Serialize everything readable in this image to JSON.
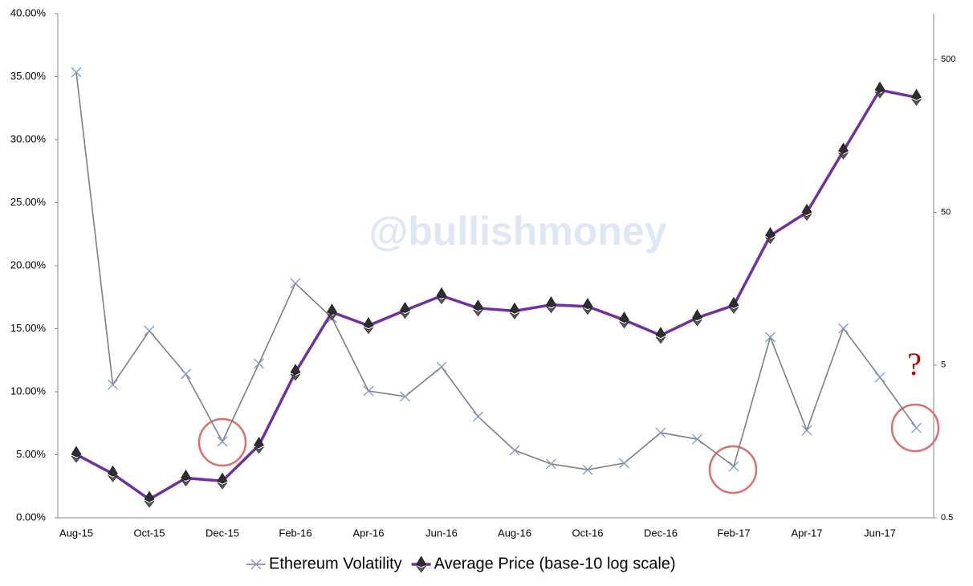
{
  "chart_data": {
    "type": "line",
    "watermark": "@bullishmoney",
    "annotations": [
      "?"
    ],
    "categories": [
      "Aug-15",
      null,
      "Oct-15",
      null,
      "Dec-15",
      null,
      "Feb-16",
      null,
      "Apr-16",
      null,
      "Jun-16",
      null,
      "Aug-16",
      null,
      "Oct-16",
      null,
      "Dec-16",
      null,
      "Feb-17",
      null,
      "Apr-17",
      null,
      "Jun-17",
      null
    ],
    "ylim": [
      0,
      40
    ],
    "yticks": [
      {
        "value": 0,
        "label": "0.00%"
      },
      {
        "value": 5,
        "label": "5.00%"
      },
      {
        "value": 10,
        "label": "10.00%"
      },
      {
        "value": 15,
        "label": "15.00%"
      },
      {
        "value": 20,
        "label": "20.00%"
      },
      {
        "value": 25,
        "label": "25.00%"
      },
      {
        "value": 30,
        "label": "30.00%"
      },
      {
        "value": 35,
        "label": "35.00%"
      },
      {
        "value": 40,
        "label": "40.00%"
      }
    ],
    "y2lim": [
      0.5,
      1000
    ],
    "y2ticks": [
      0.5,
      5,
      50,
      500
    ],
    "y2scale": "log",
    "legend": "bottom",
    "series": [
      {
        "name": "Ethereum Volatility",
        "color": "#7f7f7f",
        "marker_color": "#7f98bf",
        "values": [
          35.35,
          10.57,
          14.84,
          11.4,
          6.05,
          12.23,
          18.6,
          15.86,
          10.06,
          9.62,
          11.97,
          8.03,
          5.35,
          4.27,
          3.82,
          4.33,
          6.75,
          6.24,
          4.08,
          14.33,
          6.94,
          15.03,
          11.15,
          7.13
        ]
      },
      {
        "name": "Average Price (base-10 log scale)",
        "color": "#7030a0",
        "axis": "y2",
        "values": [
          1.3,
          0.97,
          0.66,
          0.91,
          0.87,
          1.49,
          4.48,
          11.1,
          9.06,
          11.4,
          14.2,
          11.8,
          11.3,
          12.4,
          12.1,
          9.86,
          7.83,
          10.2,
          12.3,
          35.2,
          50,
          126,
          316,
          283
        ]
      }
    ]
  }
}
